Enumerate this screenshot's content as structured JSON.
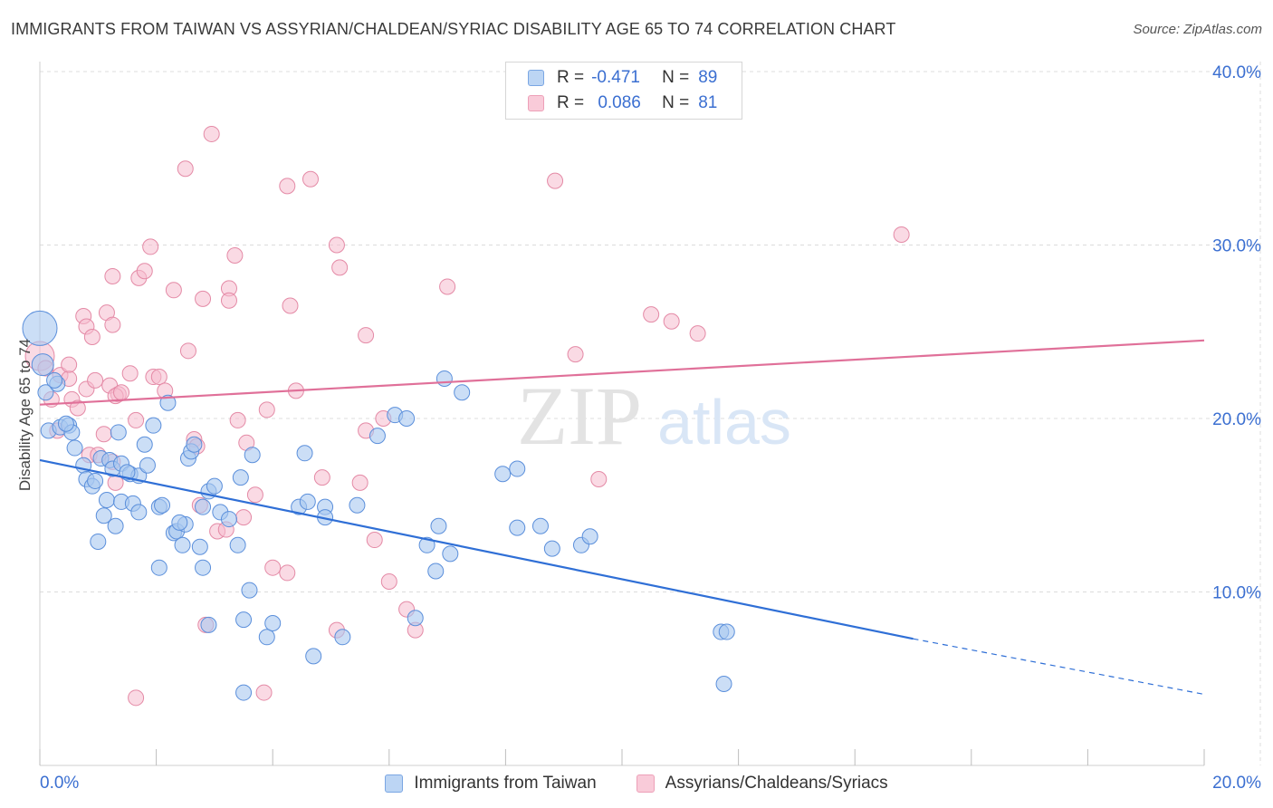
{
  "header": {
    "title": "IMMIGRANTS FROM TAIWAN VS ASSYRIAN/CHALDEAN/SYRIAC DISABILITY AGE 65 TO 74 CORRELATION CHART",
    "source": "Source: ZipAtlas.com"
  },
  "watermark": {
    "zip": "ZIP",
    "atlas": "atlas"
  },
  "legend_top": {
    "r_label": "R =",
    "n_label": "N =",
    "rows": [
      {
        "r": "-0.471",
        "n": "89"
      },
      {
        "r": "0.086",
        "n": "81"
      }
    ]
  },
  "colors": {
    "blue_fill": "#a9c8f0",
    "blue_stroke": "#5b8fdb",
    "blue_line": "#2f6fd6",
    "pink_fill": "#f6bccd",
    "pink_stroke": "#e48aa6",
    "pink_line": "#e07099",
    "tick_text": "#3b6fd1",
    "grid": "#dcdcdc"
  },
  "chart_data": {
    "type": "scatter",
    "title": "IMMIGRANTS FROM TAIWAN VS ASSYRIAN/CHALDEAN/SYRIAC DISABILITY AGE 65 TO 74 CORRELATION CHART",
    "xlabel": "",
    "ylabel": "Disability Age 65 to 74",
    "xlim": [
      0,
      20
    ],
    "ylim": [
      0,
      40
    ],
    "x_tick_labels": [
      "0.0%",
      "20.0%"
    ],
    "y_ticks": [
      10,
      20,
      30,
      40
    ],
    "y_tick_labels": [
      "10.0%",
      "20.0%",
      "30.0%",
      "40.0%"
    ],
    "grid": true,
    "legend_position": "bottom",
    "series": [
      {
        "name": "Immigrants from Taiwan",
        "color": "blue",
        "trend": {
          "x": [
            0,
            15.0
          ],
          "y": [
            17.6,
            7.3
          ],
          "dashed_to": [
            20,
            4.1
          ]
        },
        "points": [
          [
            0.0,
            25.2
          ],
          [
            0.05,
            23.1
          ],
          [
            0.1,
            21.5
          ],
          [
            0.3,
            22.0
          ],
          [
            0.25,
            22.2
          ],
          [
            0.15,
            19.3
          ],
          [
            0.35,
            19.5
          ],
          [
            0.5,
            19.6
          ],
          [
            0.55,
            19.2
          ],
          [
            0.6,
            18.3
          ],
          [
            0.75,
            17.3
          ],
          [
            0.8,
            16.5
          ],
          [
            0.9,
            16.1
          ],
          [
            0.95,
            16.4
          ],
          [
            1.05,
            17.7
          ],
          [
            1.2,
            17.6
          ],
          [
            1.25,
            17.1
          ],
          [
            1.4,
            17.4
          ],
          [
            1.55,
            16.8
          ],
          [
            1.7,
            16.7
          ],
          [
            1.85,
            17.3
          ],
          [
            1.35,
            19.2
          ],
          [
            1.8,
            18.5
          ],
          [
            2.2,
            20.9
          ],
          [
            2.55,
            17.7
          ],
          [
            2.6,
            18.1
          ],
          [
            2.65,
            18.5
          ],
          [
            1.15,
            15.3
          ],
          [
            1.4,
            15.2
          ],
          [
            1.6,
            15.1
          ],
          [
            1.7,
            14.6
          ],
          [
            2.05,
            14.9
          ],
          [
            2.1,
            15.0
          ],
          [
            2.3,
            13.4
          ],
          [
            2.35,
            13.5
          ],
          [
            2.5,
            13.9
          ],
          [
            2.45,
            12.7
          ],
          [
            2.4,
            14.0
          ],
          [
            2.8,
            14.9
          ],
          [
            2.9,
            15.8
          ],
          [
            3.0,
            16.1
          ],
          [
            3.1,
            14.6
          ],
          [
            3.25,
            14.2
          ],
          [
            3.45,
            16.6
          ],
          [
            3.65,
            17.9
          ],
          [
            3.4,
            12.7
          ],
          [
            2.75,
            12.6
          ],
          [
            2.8,
            11.4
          ],
          [
            1.1,
            14.4
          ],
          [
            1.0,
            12.9
          ],
          [
            1.3,
            13.8
          ],
          [
            2.05,
            11.4
          ],
          [
            3.6,
            10.1
          ],
          [
            2.9,
            8.1
          ],
          [
            3.5,
            8.4
          ],
          [
            3.9,
            7.4
          ],
          [
            4.0,
            8.2
          ],
          [
            4.45,
            14.9
          ],
          [
            4.55,
            18.0
          ],
          [
            4.6,
            15.2
          ],
          [
            4.9,
            14.9
          ],
          [
            4.9,
            14.3
          ],
          [
            5.45,
            15.0
          ],
          [
            4.7,
            6.3
          ],
          [
            5.2,
            7.4
          ],
          [
            5.8,
            19.0
          ],
          [
            6.1,
            20.2
          ],
          [
            6.3,
            20.0
          ],
          [
            6.45,
            8.5
          ],
          [
            6.65,
            12.7
          ],
          [
            6.8,
            11.2
          ],
          [
            6.95,
            22.3
          ],
          [
            6.85,
            13.8
          ],
          [
            7.05,
            12.2
          ],
          [
            7.25,
            21.5
          ],
          [
            7.95,
            16.8
          ],
          [
            8.2,
            17.1
          ],
          [
            8.2,
            13.7
          ],
          [
            8.6,
            13.8
          ],
          [
            8.8,
            12.5
          ],
          [
            9.3,
            12.7
          ],
          [
            9.45,
            13.2
          ],
          [
            11.7,
            7.7
          ],
          [
            11.8,
            7.7
          ],
          [
            11.75,
            4.7
          ],
          [
            3.5,
            4.2
          ],
          [
            1.95,
            19.6
          ],
          [
            0.45,
            19.7
          ],
          [
            1.5,
            16.9
          ]
        ]
      },
      {
        "name": "Assyrians/Chaldeans/Syriacs",
        "color": "pink",
        "trend": {
          "x": [
            0,
            20
          ],
          "y": [
            20.8,
            24.5
          ]
        },
        "points": [
          [
            0.0,
            23.6
          ],
          [
            0.1,
            22.9
          ],
          [
            0.2,
            21.1
          ],
          [
            0.35,
            22.5
          ],
          [
            0.5,
            22.3
          ],
          [
            0.55,
            21.1
          ],
          [
            0.3,
            19.3
          ],
          [
            0.65,
            20.6
          ],
          [
            0.8,
            21.7
          ],
          [
            0.75,
            25.9
          ],
          [
            0.8,
            25.3
          ],
          [
            0.9,
            24.7
          ],
          [
            0.85,
            17.9
          ],
          [
            1.0,
            17.9
          ],
          [
            1.1,
            19.1
          ],
          [
            1.25,
            17.5
          ],
          [
            1.3,
            16.3
          ],
          [
            1.2,
            21.9
          ],
          [
            1.35,
            21.4
          ],
          [
            1.3,
            21.3
          ],
          [
            1.15,
            26.1
          ],
          [
            1.25,
            25.4
          ],
          [
            1.25,
            28.2
          ],
          [
            1.55,
            22.6
          ],
          [
            1.65,
            19.9
          ],
          [
            1.7,
            28.1
          ],
          [
            1.8,
            28.5
          ],
          [
            1.9,
            29.9
          ],
          [
            1.95,
            22.4
          ],
          [
            2.05,
            22.4
          ],
          [
            2.15,
            21.6
          ],
          [
            2.3,
            27.4
          ],
          [
            2.55,
            23.9
          ],
          [
            2.5,
            34.4
          ],
          [
            2.65,
            18.8
          ],
          [
            2.7,
            18.4
          ],
          [
            2.75,
            15.0
          ],
          [
            2.8,
            26.9
          ],
          [
            2.85,
            8.1
          ],
          [
            2.95,
            36.4
          ],
          [
            3.05,
            13.5
          ],
          [
            3.2,
            13.6
          ],
          [
            3.25,
            27.5
          ],
          [
            3.25,
            26.8
          ],
          [
            3.35,
            29.4
          ],
          [
            3.4,
            19.9
          ],
          [
            3.5,
            14.3
          ],
          [
            3.55,
            18.6
          ],
          [
            3.7,
            15.6
          ],
          [
            3.9,
            20.5
          ],
          [
            3.85,
            4.2
          ],
          [
            4.0,
            11.4
          ],
          [
            4.25,
            11.1
          ],
          [
            4.3,
            26.5
          ],
          [
            4.4,
            21.6
          ],
          [
            4.25,
            33.4
          ],
          [
            4.65,
            33.8
          ],
          [
            4.85,
            16.6
          ],
          [
            5.1,
            30.0
          ],
          [
            5.15,
            28.7
          ],
          [
            5.1,
            7.8
          ],
          [
            5.5,
            16.3
          ],
          [
            5.6,
            19.3
          ],
          [
            5.6,
            24.8
          ],
          [
            5.75,
            13.0
          ],
          [
            5.9,
            20.0
          ],
          [
            6.0,
            10.6
          ],
          [
            6.3,
            9.0
          ],
          [
            6.45,
            7.8
          ],
          [
            7.0,
            27.6
          ],
          [
            8.85,
            33.7
          ],
          [
            9.2,
            23.7
          ],
          [
            9.6,
            16.5
          ],
          [
            10.5,
            26.0
          ],
          [
            10.85,
            25.6
          ],
          [
            11.3,
            24.9
          ],
          [
            14.8,
            30.6
          ],
          [
            1.65,
            3.9
          ],
          [
            0.5,
            23.1
          ],
          [
            1.4,
            21.5
          ],
          [
            0.95,
            22.2
          ]
        ]
      }
    ]
  }
}
